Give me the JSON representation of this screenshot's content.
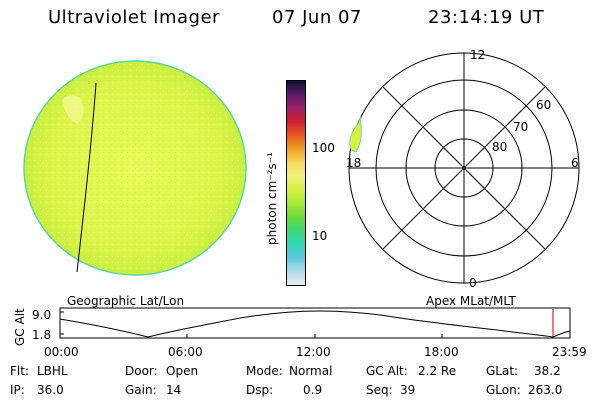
{
  "header": {
    "title": "Ultraviolet Imager",
    "date": "07 Jun 07",
    "time": "23:14:19 UT"
  },
  "colorbar": {
    "unit_label": "photon cm⁻²s⁻¹",
    "ticks": [
      "100",
      "10"
    ],
    "colors": [
      "#101030",
      "#5a1a6a",
      "#a0206a",
      "#d02030",
      "#e85a20",
      "#f0a020",
      "#f4d860",
      "#f4f080",
      "#d6f040",
      "#a8e838",
      "#6cd838",
      "#38d878",
      "#30d8b8",
      "#60c8e0",
      "#b0dce8",
      "#e8eef0"
    ]
  },
  "geo_panel": {
    "label": "Geographic Lat/Lon",
    "disk_color": "#e2f74a",
    "edge_color": "#4fd8a0"
  },
  "polar_panel": {
    "label": "Apex MLat/MLT",
    "mlt_labels": [
      "12",
      "18",
      "6",
      "0"
    ],
    "lat_labels": [
      "60",
      "70",
      "80"
    ],
    "blob_color": "#d8f040"
  },
  "altitude_plot": {
    "ylabel": "GC Alt",
    "yticks": [
      "9.0",
      "1.8"
    ],
    "xticks": [
      "00:00",
      "06:00",
      "12:00",
      "18:00",
      "23:59"
    ],
    "marker_color": "#c00000"
  },
  "info": {
    "row1": {
      "flt_label": "Flt:",
      "flt_value": "LBHL",
      "door_label": "Door:",
      "door_value": "Open",
      "mode_label": "Mode:",
      "mode_value": "Normal",
      "gcalt_label": "GC Alt:",
      "gcalt_value": "2.2 Re",
      "glat_label": "GLat:",
      "glat_value": "38.2"
    },
    "row2": {
      "ip_label": "IP:",
      "ip_value": "36.0",
      "gain_label": "Gain:",
      "gain_value": "14",
      "dsp_label": "Dsp:",
      "dsp_value": "0.9",
      "seq_label": "Seq:",
      "seq_value": "39",
      "glon_label": "GLon:",
      "glon_value": "263.0"
    }
  }
}
